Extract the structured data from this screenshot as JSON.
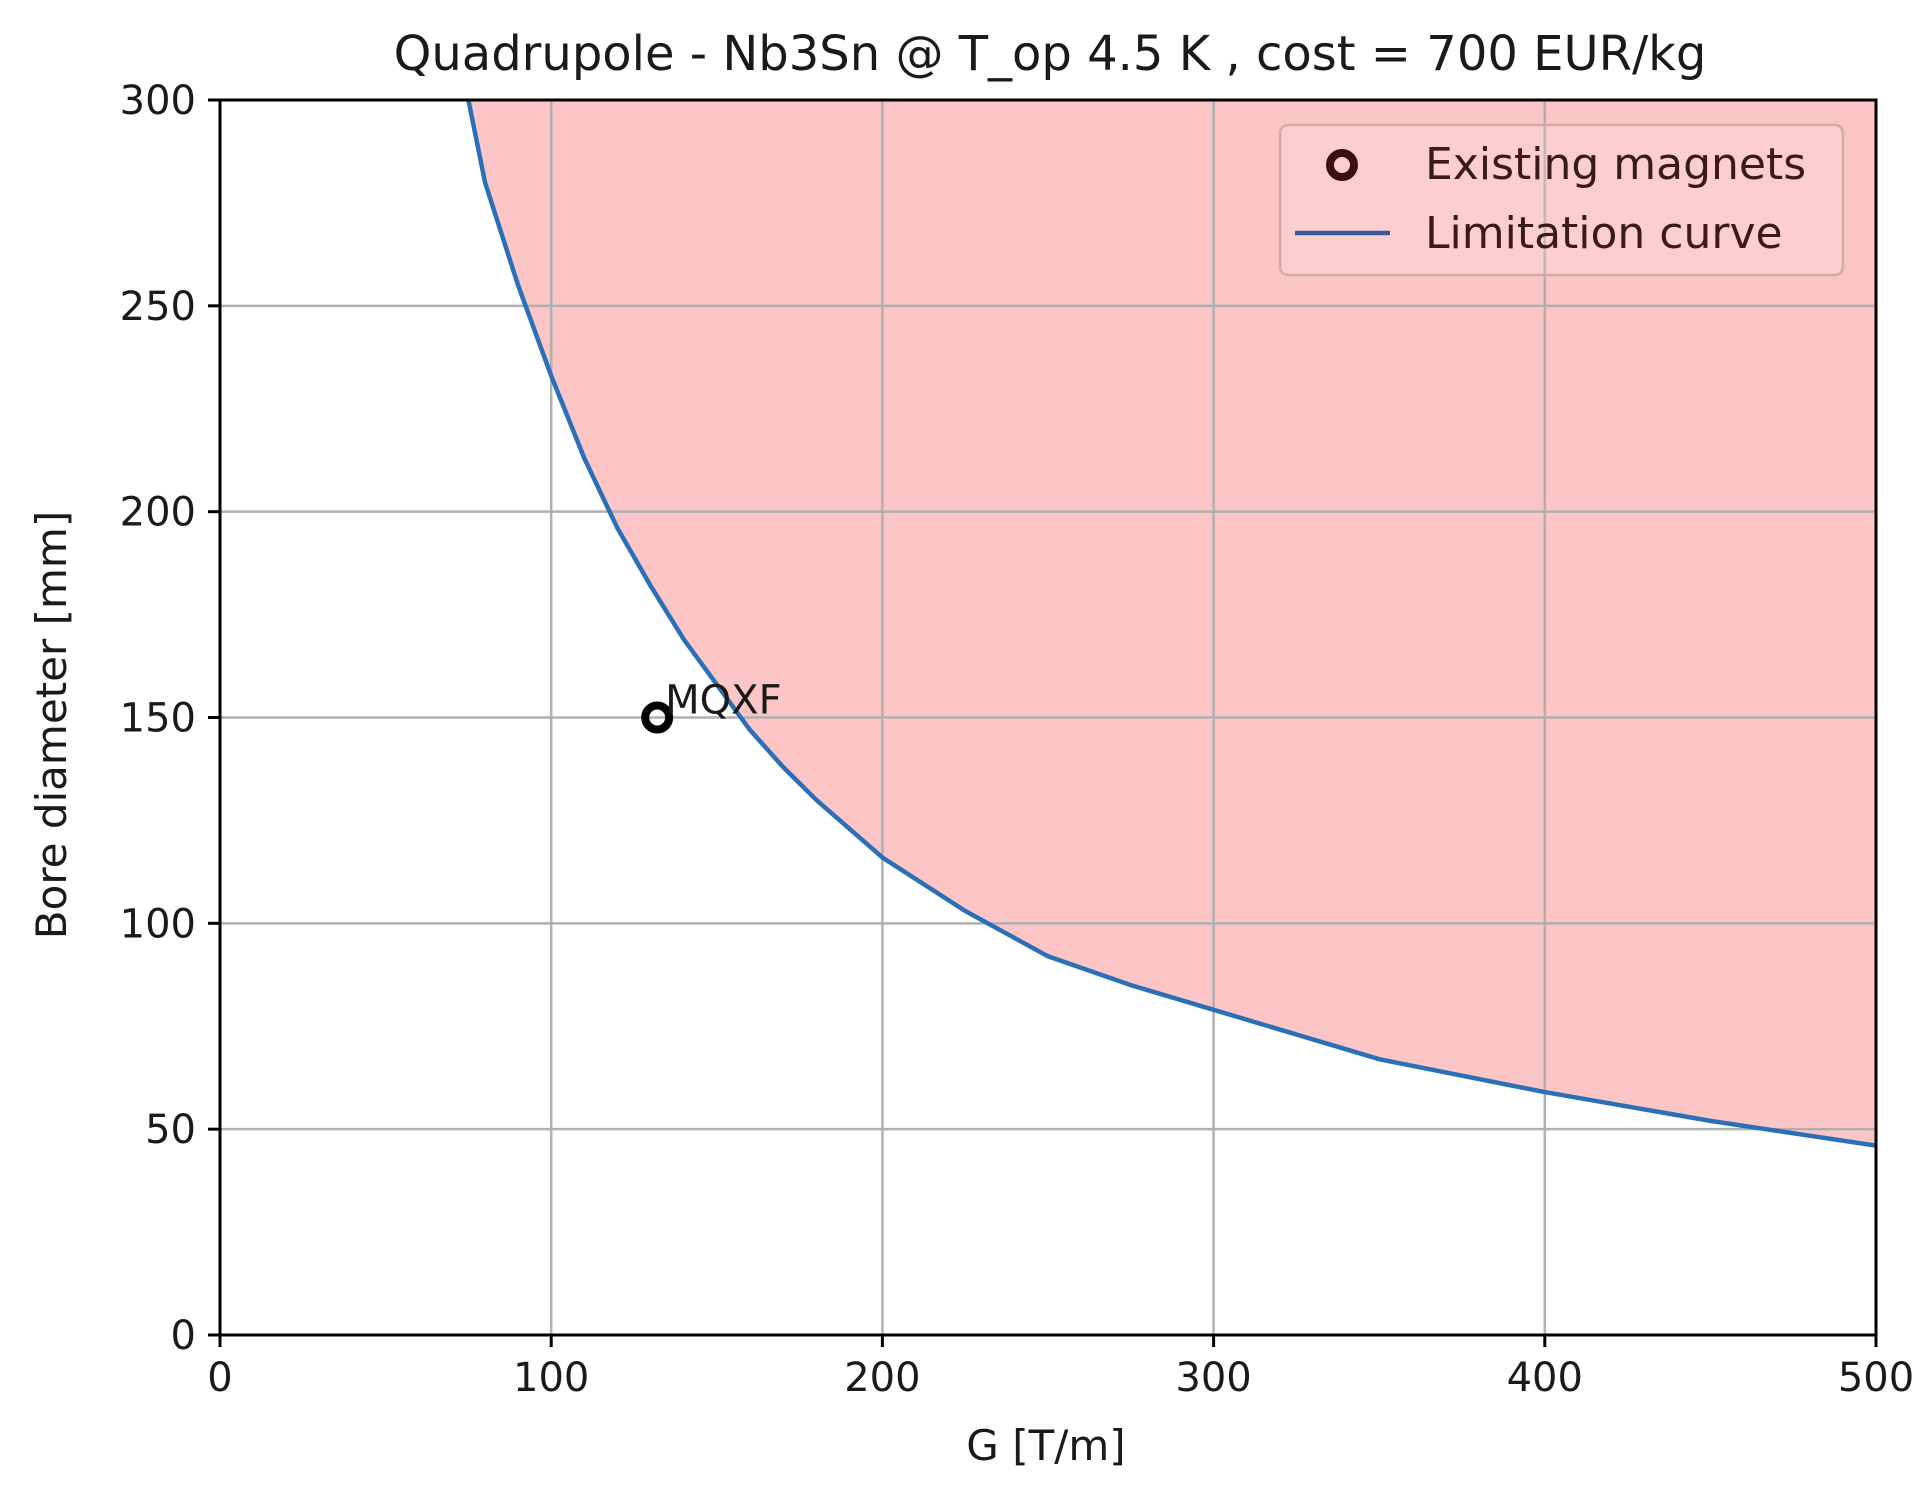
{
  "chart_data": {
    "type": "line",
    "title": "Quadrupole - Nb3Sn @ T_op 4.5 K , cost = 700 EUR/kg",
    "xlabel": "G [T/m]",
    "ylabel": "Bore diameter [mm]",
    "xlim": [
      0,
      500
    ],
    "ylim": [
      0,
      300
    ],
    "xticks": [
      0,
      100,
      200,
      300,
      400,
      500
    ],
    "yticks": [
      0,
      50,
      100,
      150,
      200,
      250,
      300
    ],
    "grid": true,
    "legend_position": "top-right",
    "series": [
      {
        "name": "Limitation curve",
        "kind": "line",
        "color": "#2a6fb8",
        "fill_above_color": "#fcc6c6",
        "x": [
          75,
          80,
          90,
          100,
          110,
          120,
          130,
          140,
          150,
          160,
          170,
          180,
          200,
          225,
          250,
          275,
          300,
          350,
          400,
          450,
          500
        ],
        "y": [
          300,
          280,
          255,
          233,
          213,
          196,
          182,
          169,
          158,
          147,
          138,
          130,
          116,
          103,
          92,
          85,
          79,
          67,
          59,
          52,
          46
        ]
      },
      {
        "name": "Existing magnets",
        "kind": "scatter",
        "marker": "open-circle",
        "color": "#000000",
        "points": [
          {
            "x": 132,
            "y": 150,
            "label": "MQXF"
          }
        ]
      }
    ]
  }
}
